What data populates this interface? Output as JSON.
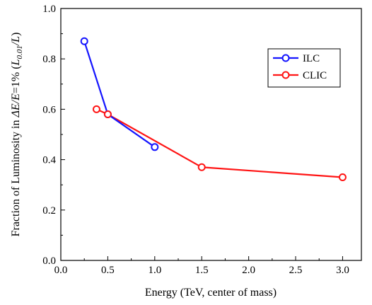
{
  "chart_data": {
    "type": "line",
    "xlabel": "Energy (TeV, center of mass)",
    "ylabel_prefix": "Fraction of Luminosity in ",
    "ylabel_math1": "ΔE/E",
    "ylabel_mid": "=1% (",
    "ylabel_math2": "L",
    "ylabel_sub": "0.01",
    "ylabel_math3": "/L",
    "ylabel_suffix": ")",
    "xlim": [
      0.0,
      3.2
    ],
    "ylim": [
      0.0,
      1.0
    ],
    "x_ticks": [
      0.0,
      0.5,
      1.0,
      1.5,
      2.0,
      2.5,
      3.0
    ],
    "x_tick_labels": [
      "0.0",
      "0.5",
      "1.0",
      "1.5",
      "2.0",
      "2.5",
      "3.0"
    ],
    "y_ticks": [
      0.0,
      0.2,
      0.4,
      0.6,
      0.8,
      1.0
    ],
    "y_tick_labels": [
      "0.0",
      "0.2",
      "0.4",
      "0.6",
      "0.8",
      "1.0"
    ],
    "grid": false,
    "legend_position": "top-right",
    "series": [
      {
        "name": "ILC",
        "color": "#1515ff",
        "marker": "open-circle",
        "x": [
          0.25,
          0.5,
          1.0
        ],
        "y": [
          0.87,
          0.58,
          0.45
        ]
      },
      {
        "name": "CLIC",
        "color": "#ff1515",
        "marker": "open-circle",
        "x": [
          0.38,
          0.5,
          1.5,
          3.0
        ],
        "y": [
          0.6,
          0.58,
          0.37,
          0.33
        ]
      }
    ]
  }
}
